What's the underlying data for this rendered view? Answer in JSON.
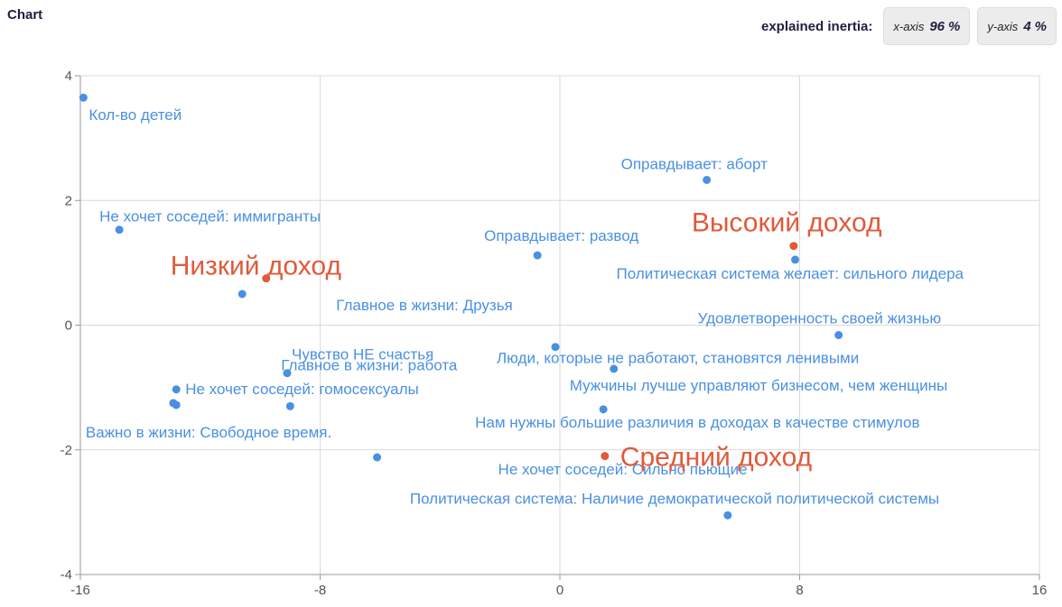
{
  "header": {
    "title": "Chart",
    "inertia_label": "explained inertia:",
    "x_axis_label": "x-axis",
    "x_axis_value": "96",
    "y_axis_label": "y-axis",
    "y_axis_value": "4",
    "unit": "%"
  },
  "chart_data": {
    "type": "scatter",
    "xlim": [
      -16,
      16
    ],
    "ylim": [
      -4,
      4
    ],
    "x_ticks": [
      -16,
      -8,
      0,
      8,
      16
    ],
    "y_ticks": [
      -4,
      -2,
      0,
      2,
      4
    ],
    "grid": true,
    "colors": {
      "variables": "#4a90e2",
      "income": "#e05a3a",
      "grid": "#d9d9d9",
      "axis": "#999999"
    },
    "points": [
      {
        "label": "Кол-во детей",
        "x": -15.9,
        "y": 3.65,
        "group": "variables",
        "anchor": "start",
        "dx": 6,
        "dy": 25
      },
      {
        "label": "Не хочет соседей: иммигранты",
        "x": -14.7,
        "y": 1.53,
        "group": "variables",
        "anchor": "start",
        "dx": -22,
        "dy": -9
      },
      {
        "label": "Главное в жизни: Друзья",
        "x": -10.6,
        "y": 0.5,
        "group": "variables",
        "anchor": "end",
        "dx": 104,
        "dy": 18
      },
      {
        "label": "Главное в жизни: работа",
        "x": -12.8,
        "y": -1.03,
        "group": "variables",
        "anchor": "end",
        "dx": 116,
        "dy": -21
      },
      {
        "label": "Чувство НЕ счастья",
        "x": -9.1,
        "y": -0.77,
        "group": "variables",
        "anchor": "start",
        "dx": 5,
        "dy": -15
      },
      {
        "label": "Не хочет соседей: гомосексуалы",
        "x": -12.8,
        "y": -1.28,
        "group": "variables",
        "anchor": "start",
        "dx": 10,
        "dy": -12
      },
      {
        "label": "",
        "x": -9.0,
        "y": -1.3,
        "group": "variables",
        "anchor": "start",
        "dx": 0,
        "dy": 0
      },
      {
        "label": "Важно в жизни: Свободное время.",
        "x": -12.9,
        "y": -1.25,
        "group": "variables",
        "anchor": "start",
        "dx": -97,
        "dy": 38
      },
      {
        "label": "Не хочет соседей: Сильно пьющие",
        "x": -6.1,
        "y": -2.12,
        "group": "variables",
        "anchor": "end",
        "dx": 134,
        "dy": 19
      },
      {
        "label": "Оправдывает: аборт",
        "x": 4.9,
        "y": 2.33,
        "group": "variables",
        "anchor": "start",
        "dx": -95,
        "dy": -12
      },
      {
        "label": "Оправдывает: развод",
        "x": -0.75,
        "y": 1.12,
        "group": "variables",
        "anchor": "start",
        "dx": -59,
        "dy": -16
      },
      {
        "label": "Политическая система желает: сильного лидера",
        "x": 7.85,
        "y": 1.05,
        "group": "variables",
        "anchor": "start",
        "dx": -198,
        "dy": 21
      },
      {
        "label": "Удовлетворенность своей жизнью",
        "x": 9.3,
        "y": -0.16,
        "group": "variables",
        "anchor": "start",
        "dx": -156,
        "dy": -13
      },
      {
        "label": "Люди, которые не работают, становятся ленивыми",
        "x": -0.15,
        "y": -0.35,
        "group": "variables",
        "anchor": "start",
        "dx": -65,
        "dy": 18
      },
      {
        "label": "Мужчины лучше управляют бизнесом, чем женщины",
        "x": 1.8,
        "y": -0.7,
        "group": "variables",
        "anchor": "start",
        "dx": -49,
        "dy": 24
      },
      {
        "label": "Нам нужны большие различия в доходах в качестве стимулов",
        "x": 1.45,
        "y": -1.35,
        "group": "variables",
        "anchor": "start",
        "dx": -142,
        "dy": 20
      },
      {
        "label": "Политическая система: Наличие демократической политической системы",
        "x": 5.6,
        "y": -3.05,
        "group": "variables",
        "anchor": "start",
        "dx": -352,
        "dy": -13
      },
      {
        "label": "Низкий доход",
        "x": -9.8,
        "y": 0.75,
        "group": "income",
        "anchor": "start",
        "dx": -106,
        "dy": -4
      },
      {
        "label": "Высокий доход",
        "x": 7.8,
        "y": 1.27,
        "group": "income",
        "anchor": "start",
        "dx": -113,
        "dy": -16
      },
      {
        "label": "Средний доход",
        "x": 1.5,
        "y": -2.1,
        "group": "income",
        "anchor": "start",
        "dx": 17,
        "dy": 11
      }
    ]
  }
}
